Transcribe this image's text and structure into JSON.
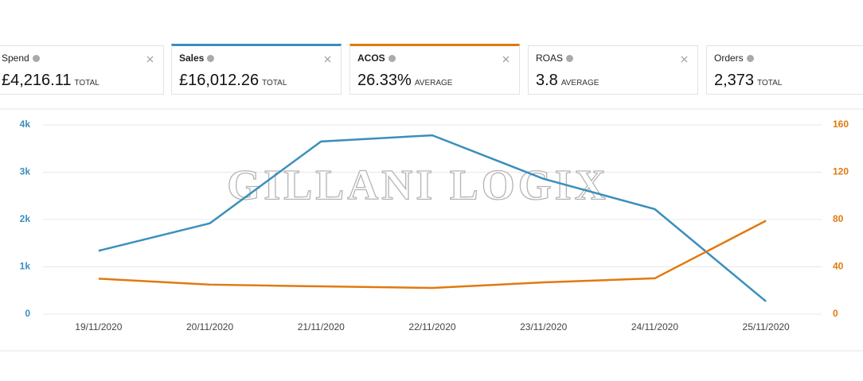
{
  "metrics": [
    {
      "name": "Spend",
      "value": "£4,216.11",
      "unit": "TOTAL"
    },
    {
      "name": "Sales",
      "value": "£16,012.26",
      "unit": "TOTAL",
      "color": "#3a8fbb"
    },
    {
      "name": "ACOS",
      "value": "26.33%",
      "unit": "AVERAGE",
      "color": "#e07a10"
    },
    {
      "name": "ROAS",
      "value": "3.8",
      "unit": "AVERAGE"
    },
    {
      "name": "Orders",
      "value": "2,373",
      "unit": "TOTAL"
    }
  ],
  "chart_data": {
    "type": "line",
    "watermark": "GILLANI LOGIX",
    "categories": [
      "19/11/2020",
      "20/11/2020",
      "21/11/2020",
      "22/11/2020",
      "23/11/2020",
      "24/11/2020",
      "25/11/2020"
    ],
    "series": [
      {
        "name": "Sales",
        "color": "#3a8fbb",
        "values": [
          1340,
          1920,
          3650,
          3780,
          2860,
          2220,
          270
        ]
      },
      {
        "name": "ACOS",
        "color": "#e07a10",
        "axis": "y2",
        "values": [
          30,
          25,
          23.5,
          22.2,
          26.9,
          30.3,
          79
        ]
      }
    ],
    "ylim": [
      0,
      4000
    ],
    "yticks": [
      0,
      {
        "value": 1000,
        "label": "1k"
      },
      {
        "value": 2000,
        "label": "2k"
      },
      {
        "value": 3000,
        "label": "3k"
      },
      {
        "value": 4000,
        "label": "4k"
      }
    ],
    "y2lim": [
      0,
      160
    ],
    "y2ticks": [
      0,
      40,
      80,
      120,
      160
    ],
    "grid": true
  }
}
